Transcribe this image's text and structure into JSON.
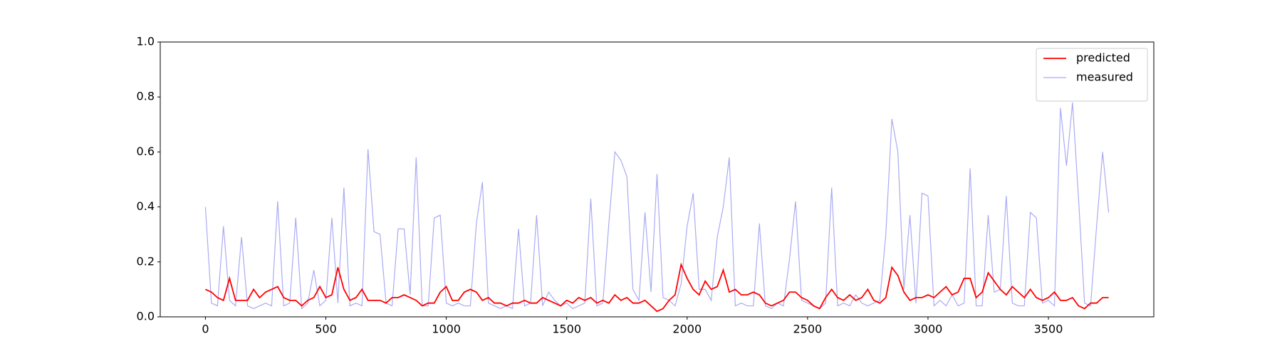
{
  "chart_data": {
    "type": "line",
    "x": [
      0,
      25,
      50,
      75,
      100,
      125,
      150,
      175,
      200,
      225,
      250,
      275,
      300,
      325,
      350,
      375,
      400,
      425,
      450,
      475,
      500,
      525,
      550,
      575,
      600,
      625,
      650,
      675,
      700,
      725,
      750,
      775,
      800,
      825,
      850,
      875,
      900,
      925,
      950,
      975,
      1000,
      1025,
      1050,
      1075,
      1100,
      1125,
      1150,
      1175,
      1200,
      1225,
      1250,
      1275,
      1300,
      1325,
      1350,
      1375,
      1400,
      1425,
      1450,
      1475,
      1500,
      1525,
      1550,
      1575,
      1600,
      1625,
      1650,
      1675,
      1700,
      1725,
      1750,
      1775,
      1800,
      1825,
      1850,
      1875,
      1900,
      1925,
      1950,
      1975,
      2000,
      2025,
      2050,
      2075,
      2100,
      2125,
      2150,
      2175,
      2200,
      2225,
      2250,
      2275,
      2300,
      2325,
      2350,
      2375,
      2400,
      2425,
      2450,
      2475,
      2500,
      2525,
      2550,
      2575,
      2600,
      2625,
      2650,
      2675,
      2700,
      2725,
      2750,
      2775,
      2800,
      2825,
      2850,
      2875,
      2900,
      2925,
      2950,
      2975,
      3000,
      3025,
      3050,
      3075,
      3100,
      3125,
      3150,
      3175,
      3200,
      3225,
      3250,
      3275,
      3300,
      3325,
      3350,
      3375,
      3400,
      3425,
      3450,
      3475,
      3500,
      3525,
      3550,
      3575,
      3600,
      3625,
      3650,
      3675,
      3700,
      3725,
      3750
    ],
    "series": [
      {
        "name": "predicted",
        "color": "#ff0000",
        "values": [
          0.1,
          0.09,
          0.07,
          0.06,
          0.14,
          0.06,
          0.06,
          0.06,
          0.1,
          0.07,
          0.09,
          0.1,
          0.11,
          0.07,
          0.06,
          0.06,
          0.04,
          0.06,
          0.07,
          0.11,
          0.07,
          0.08,
          0.18,
          0.1,
          0.06,
          0.07,
          0.1,
          0.06,
          0.06,
          0.06,
          0.05,
          0.07,
          0.07,
          0.08,
          0.07,
          0.06,
          0.04,
          0.05,
          0.05,
          0.09,
          0.11,
          0.06,
          0.06,
          0.09,
          0.1,
          0.09,
          0.06,
          0.07,
          0.05,
          0.05,
          0.04,
          0.05,
          0.05,
          0.06,
          0.05,
          0.05,
          0.07,
          0.06,
          0.05,
          0.04,
          0.06,
          0.05,
          0.07,
          0.06,
          0.07,
          0.05,
          0.06,
          0.05,
          0.08,
          0.06,
          0.07,
          0.05,
          0.05,
          0.06,
          0.04,
          0.02,
          0.03,
          0.06,
          0.08,
          0.19,
          0.14,
          0.1,
          0.08,
          0.13,
          0.1,
          0.11,
          0.17,
          0.09,
          0.1,
          0.08,
          0.08,
          0.09,
          0.08,
          0.05,
          0.04,
          0.05,
          0.06,
          0.09,
          0.09,
          0.07,
          0.06,
          0.04,
          0.03,
          0.07,
          0.1,
          0.07,
          0.06,
          0.08,
          0.06,
          0.07,
          0.1,
          0.06,
          0.05,
          0.07,
          0.18,
          0.15,
          0.09,
          0.06,
          0.07,
          0.07,
          0.08,
          0.07,
          0.09,
          0.11,
          0.08,
          0.09,
          0.14,
          0.14,
          0.07,
          0.09,
          0.16,
          0.13,
          0.1,
          0.08,
          0.11,
          0.09,
          0.07,
          0.1,
          0.07,
          0.06,
          0.07,
          0.09,
          0.06,
          0.06,
          0.07,
          0.04,
          0.03,
          0.05,
          0.05,
          0.07,
          0.07
        ]
      },
      {
        "name": "measured",
        "color": "#aaaaf5",
        "values": [
          0.4,
          0.05,
          0.04,
          0.33,
          0.06,
          0.04,
          0.29,
          0.04,
          0.03,
          0.04,
          0.05,
          0.04,
          0.42,
          0.04,
          0.05,
          0.36,
          0.03,
          0.05,
          0.17,
          0.04,
          0.06,
          0.36,
          0.05,
          0.47,
          0.04,
          0.05,
          0.04,
          0.61,
          0.31,
          0.3,
          0.05,
          0.04,
          0.32,
          0.32,
          0.08,
          0.58,
          0.04,
          0.04,
          0.36,
          0.37,
          0.05,
          0.04,
          0.05,
          0.04,
          0.04,
          0.34,
          0.49,
          0.05,
          0.04,
          0.03,
          0.04,
          0.03,
          0.32,
          0.04,
          0.05,
          0.37,
          0.04,
          0.09,
          0.06,
          0.04,
          0.05,
          0.03,
          0.04,
          0.05,
          0.43,
          0.04,
          0.05,
          0.34,
          0.6,
          0.57,
          0.51,
          0.1,
          0.06,
          0.38,
          0.09,
          0.52,
          0.07,
          0.06,
          0.04,
          0.12,
          0.33,
          0.45,
          0.1,
          0.1,
          0.06,
          0.29,
          0.4,
          0.58,
          0.04,
          0.05,
          0.04,
          0.04,
          0.34,
          0.04,
          0.03,
          0.05,
          0.04,
          0.21,
          0.42,
          0.06,
          0.05,
          0.04,
          0.03,
          0.05,
          0.47,
          0.04,
          0.05,
          0.04,
          0.08,
          0.05,
          0.04,
          0.05,
          0.06,
          0.3,
          0.72,
          0.6,
          0.1,
          0.37,
          0.05,
          0.45,
          0.44,
          0.04,
          0.06,
          0.04,
          0.08,
          0.04,
          0.05,
          0.54,
          0.04,
          0.04,
          0.37,
          0.09,
          0.1,
          0.44,
          0.05,
          0.04,
          0.04,
          0.38,
          0.36,
          0.05,
          0.06,
          0.04,
          0.76,
          0.55,
          0.78,
          0.43,
          0.05,
          0.04,
          0.33,
          0.6,
          0.38
        ]
      }
    ],
    "xlim": [
      -187.5,
      3937.5
    ],
    "xticks": [
      0,
      500,
      1000,
      1500,
      2000,
      2500,
      3000,
      3500
    ],
    "ylim": [
      0,
      1
    ],
    "yticks": [
      {
        "value": 0,
        "label": "0.0"
      },
      {
        "value": 0.2,
        "label": "0.2"
      },
      {
        "value": 0.4,
        "label": "0.4"
      },
      {
        "value": 0.6,
        "label": "0.6"
      },
      {
        "value": 0.8,
        "label": "0.8"
      },
      {
        "value": 1,
        "label": "1.0"
      }
    ],
    "grid": false,
    "legend": "upper right"
  }
}
